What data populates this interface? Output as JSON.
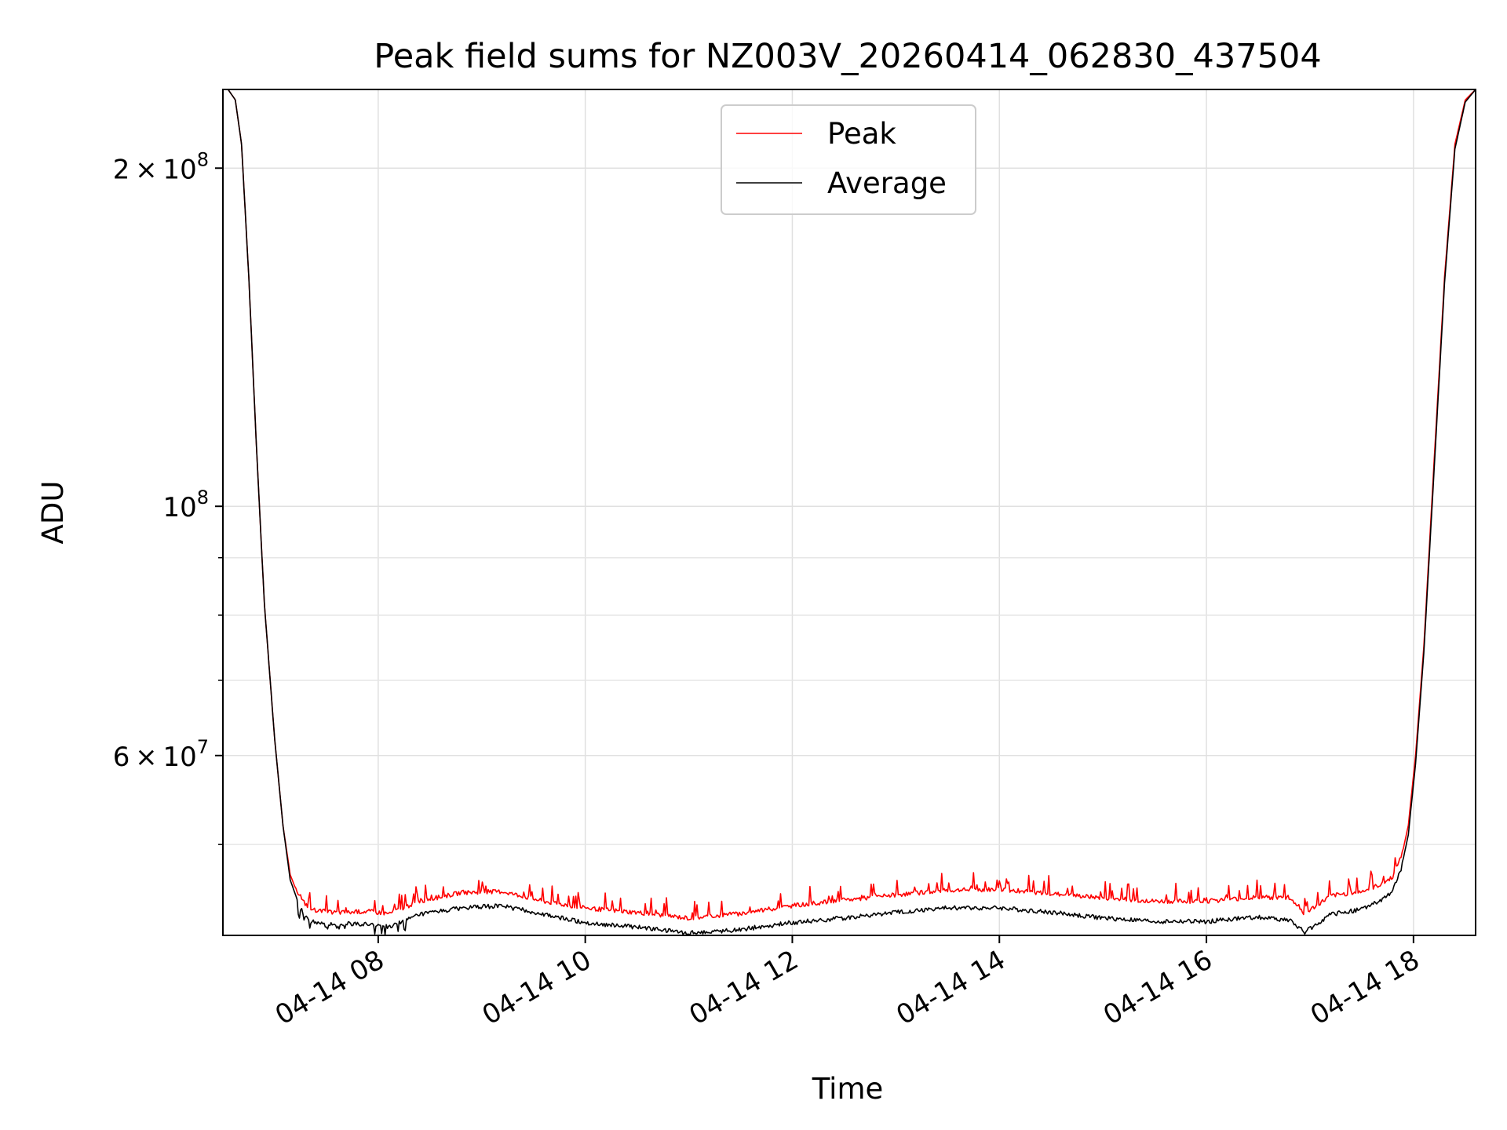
{
  "chart_data": {
    "type": "line",
    "title": "Peak field sums for NZ003V_20260414_062830_437504",
    "xlabel": "Time",
    "ylabel": "ADU",
    "x_unit": "hours since 2026-04-14 00:00",
    "xlim": [
      6.5,
      18.6
    ],
    "ylim": [
      41500000,
      235000000
    ],
    "yscale": "log",
    "grid": true,
    "legend_position": "upper center",
    "x_ticks": [
      {
        "value": 8,
        "label": "04-14 08"
      },
      {
        "value": 10,
        "label": "04-14 10"
      },
      {
        "value": 12,
        "label": "04-14 12"
      },
      {
        "value": 14,
        "label": "04-14 14"
      },
      {
        "value": 16,
        "label": "04-14 16"
      },
      {
        "value": 18,
        "label": "04-14 18"
      }
    ],
    "y_ticks_major": [
      {
        "value": 60000000,
        "mantissa": "6",
        "exponent": "7"
      },
      {
        "value": 100000000,
        "mantissa": "",
        "exponent": "8"
      },
      {
        "value": 200000000,
        "mantissa": "2",
        "exponent": "8"
      }
    ],
    "y_ticks_minor": [
      50000000,
      70000000,
      80000000,
      90000000
    ],
    "series": [
      {
        "name": "Peak",
        "color": "#ff0000",
        "x": [
          6.55,
          6.62,
          6.68,
          6.75,
          6.82,
          6.9,
          7.0,
          7.08,
          7.15,
          7.25,
          7.35,
          7.5,
          7.7,
          7.9,
          8.1,
          8.4,
          8.8,
          9.2,
          9.6,
          10.0,
          10.5,
          11.0,
          11.5,
          12.0,
          12.5,
          13.0,
          13.5,
          14.0,
          14.5,
          15.0,
          15.5,
          16.0,
          16.5,
          16.8,
          16.95,
          17.2,
          17.5,
          17.7,
          17.8,
          17.88,
          17.95,
          18.02,
          18.1,
          18.2,
          18.3,
          18.4,
          18.5,
          18.6
        ],
        "y": [
          235000000,
          230000000,
          210000000,
          160000000,
          115000000,
          82000000,
          62000000,
          52000000,
          47000000,
          44500000,
          43600000,
          43300000,
          43300000,
          43400000,
          43200000,
          44300000,
          45100000,
          45200000,
          44300000,
          43700000,
          43300000,
          42800000,
          43200000,
          43900000,
          44400000,
          44900000,
          45300000,
          45400000,
          45000000,
          44600000,
          44300000,
          44300000,
          44700000,
          44600000,
          43200000,
          44800000,
          45200000,
          45900000,
          46600000,
          48500000,
          52000000,
          60000000,
          75000000,
          110000000,
          160000000,
          210000000,
          230000000,
          235000000
        ]
      },
      {
        "name": "Average",
        "color": "#000000",
        "x": [
          6.55,
          6.62,
          6.68,
          6.75,
          6.82,
          6.9,
          7.0,
          7.08,
          7.15,
          7.25,
          7.35,
          7.5,
          7.7,
          7.9,
          8.1,
          8.4,
          8.8,
          9.2,
          9.6,
          10.0,
          10.5,
          11.0,
          11.5,
          12.0,
          12.5,
          13.0,
          13.5,
          14.0,
          14.5,
          15.0,
          15.5,
          16.0,
          16.5,
          16.8,
          16.95,
          17.2,
          17.5,
          17.7,
          17.8,
          17.88,
          17.95,
          18.02,
          18.1,
          18.2,
          18.3,
          18.4,
          18.5,
          18.6
        ],
        "y": [
          235000000,
          230000000,
          210000000,
          160000000,
          115000000,
          82000000,
          62000000,
          52000000,
          46500000,
          43800000,
          42700000,
          42400000,
          42500000,
          42500000,
          42200000,
          43300000,
          43900000,
          44100000,
          43300000,
          42600000,
          42200000,
          41700000,
          42000000,
          42600000,
          43000000,
          43500000,
          43900000,
          43900000,
          43500000,
          43000000,
          42700000,
          42700000,
          43100000,
          42800000,
          41800000,
          43300000,
          43800000,
          44600000,
          45500000,
          47500000,
          51000000,
          59000000,
          74000000,
          108000000,
          158000000,
          208000000,
          229000000,
          235000000
        ]
      }
    ]
  }
}
